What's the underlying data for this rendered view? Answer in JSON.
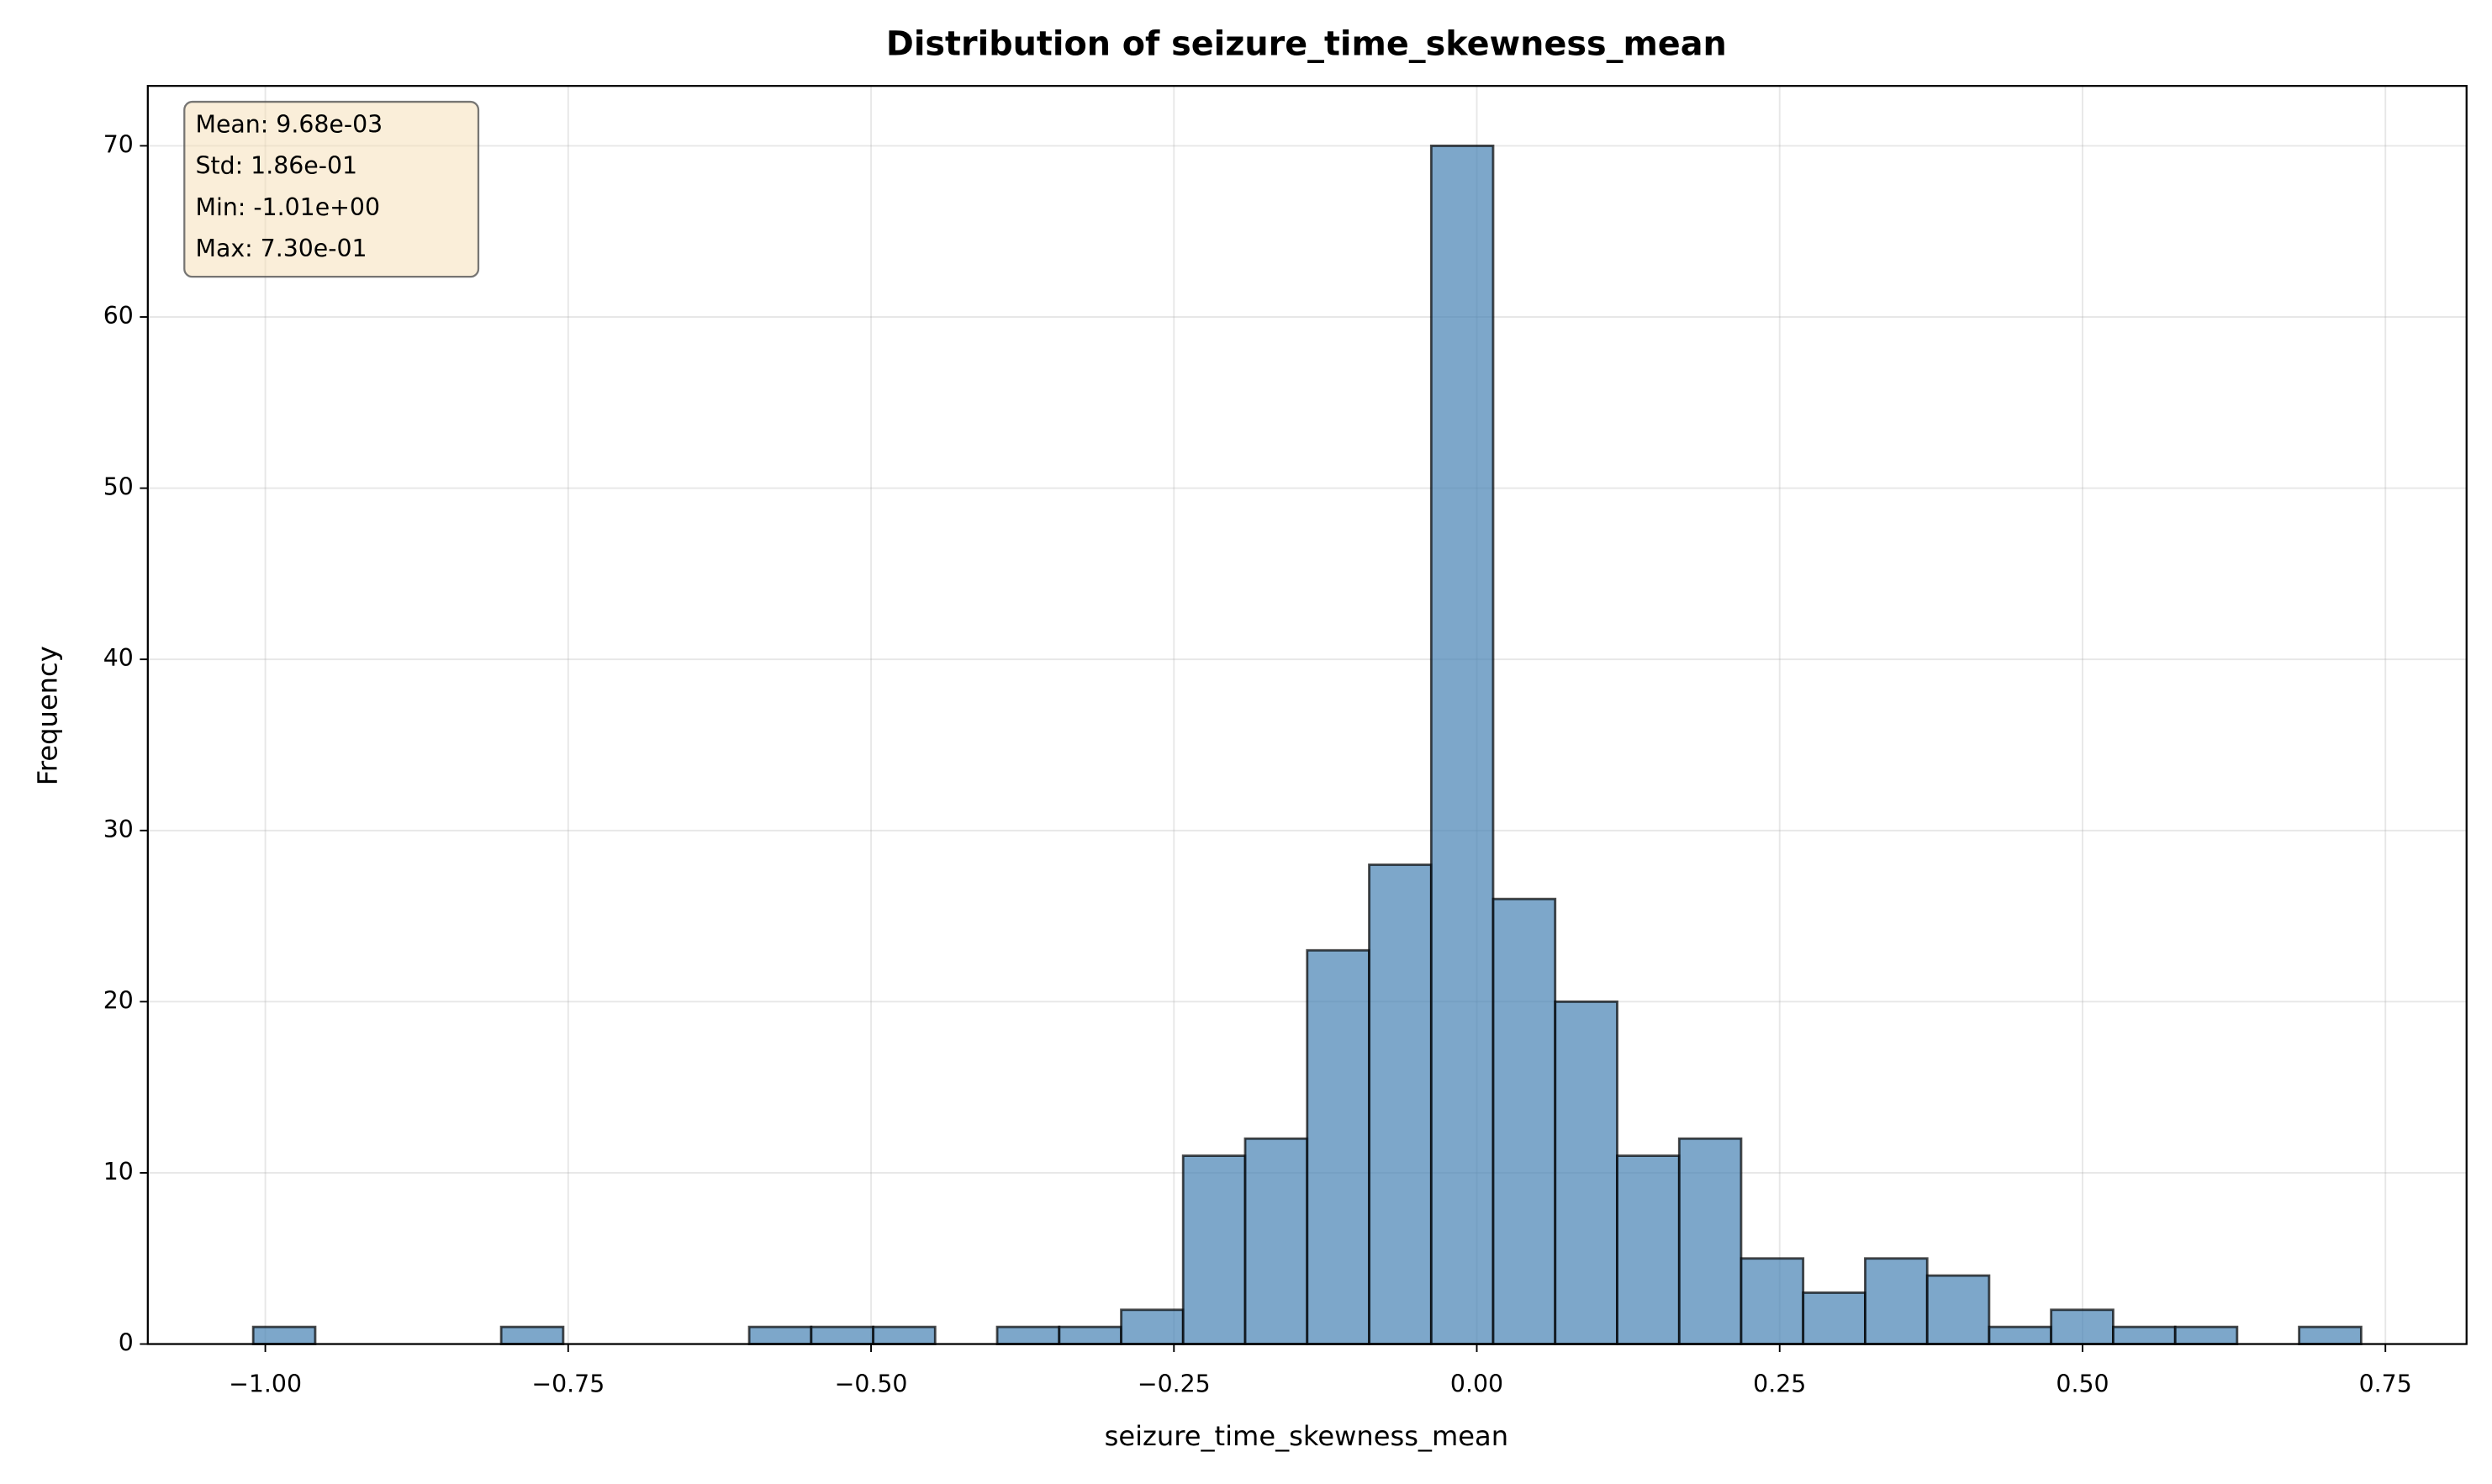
{
  "chart_data": {
    "type": "histogram",
    "title": "Distribution of seizure_time_skewness_mean",
    "x_label": "seizure_time_skewness_mean",
    "y_label": "Frequency",
    "annotations": [
      "Mean: 9.68e-03",
      "Std: 1.86e-01",
      "Min: -1.01e+00",
      "Max: 7.30e-01"
    ],
    "color": "#4682b4",
    "edge_color": "#000000",
    "grid": true,
    "bins": [
      -1.01,
      -0.9588,
      -0.9076,
      -0.8565,
      -0.8053,
      -0.7541,
      -0.7029,
      -0.6518,
      -0.6006,
      -0.5494,
      -0.4982,
      -0.4471,
      -0.3959,
      -0.3447,
      -0.2935,
      -0.2424,
      -0.1912,
      -0.14,
      -0.0888,
      -0.0376,
      0.0135,
      0.0647,
      0.1159,
      0.1671,
      0.2182,
      0.2694,
      0.3206,
      0.3718,
      0.4229,
      0.4741,
      0.5253,
      0.5765,
      0.6276,
      0.6788,
      0.73
    ],
    "values": [
      1,
      0,
      0,
      0,
      1,
      0,
      0,
      0,
      1,
      1,
      1,
      0,
      1,
      1,
      2,
      11,
      12,
      23,
      28,
      70,
      26,
      20,
      11,
      12,
      5,
      3,
      5,
      4,
      1,
      2,
      1,
      1,
      0,
      1
    ],
    "xlim": [
      -1.097,
      0.817
    ],
    "ylim": [
      0,
      73.5
    ],
    "xticks": [
      {
        "value": -1.0,
        "label": "−1.00"
      },
      {
        "value": -0.75,
        "label": "−0.75"
      },
      {
        "value": -0.5,
        "label": "−0.50"
      },
      {
        "value": -0.25,
        "label": "−0.25"
      },
      {
        "value": 0,
        "label": "0.00"
      },
      {
        "value": 0.25,
        "label": "0.25"
      },
      {
        "value": 0.5,
        "label": "0.50"
      },
      {
        "value": 0.75,
        "label": "0.75"
      }
    ],
    "yticks": [
      0,
      10,
      20,
      30,
      40,
      50,
      60,
      70
    ]
  }
}
